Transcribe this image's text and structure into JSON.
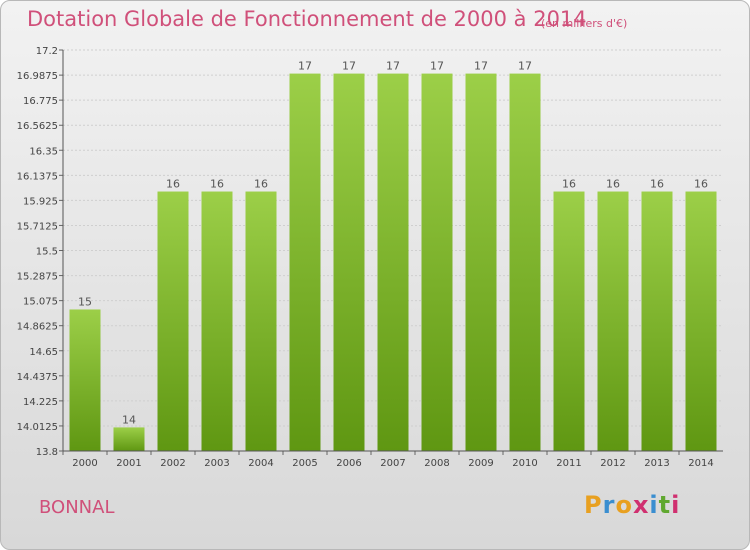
{
  "chart_data": {
    "type": "bar",
    "title": "Dotation Globale de Fonctionnement de 2000 à 2014",
    "unit_note": "(en milliers d'€)",
    "categories": [
      "2000",
      "2001",
      "2002",
      "2003",
      "2004",
      "2005",
      "2006",
      "2007",
      "2008",
      "2009",
      "2010",
      "2011",
      "2012",
      "2013",
      "2014"
    ],
    "values": [
      15,
      14,
      16,
      16,
      16,
      17,
      17,
      17,
      17,
      17,
      17,
      16,
      16,
      16,
      16
    ],
    "data_labels": [
      "15",
      "14",
      "16",
      "16",
      "16",
      "17",
      "17",
      "17",
      "17",
      "17",
      "17",
      "16",
      "16",
      "16",
      "16"
    ],
    "ylim": [
      13.8,
      17.2
    ],
    "yticks": [
      13.8,
      14.0125,
      14.225,
      14.4375,
      14.65,
      14.8625,
      15.075,
      15.2875,
      15.5,
      15.7125,
      15.925,
      16.1375,
      16.35,
      16.5625,
      16.775,
      16.9875,
      17.2
    ],
    "ytick_labels": [
      "13.8",
      "14.0125",
      "14.225",
      "14.4375",
      "14.65",
      "14.8625",
      "15.075",
      "15.2875",
      "15.5",
      "15.7125",
      "15.925",
      "16.1375",
      "16.35",
      "16.5625",
      "16.775",
      "16.9875",
      "17.2"
    ],
    "xlabel": "",
    "ylabel": "",
    "grid": true,
    "bar_color_top": "#9ccf48",
    "bar_color_bottom": "#5f9712"
  },
  "commune": "BONNAL",
  "logo": {
    "letters": [
      "P",
      "r",
      "o",
      "x",
      "i",
      "t",
      "i"
    ],
    "colors": [
      "#e8a020",
      "#3a8ed0",
      "#e8a020",
      "#d03070",
      "#3a8ed0",
      "#60a830",
      "#d03070"
    ]
  }
}
